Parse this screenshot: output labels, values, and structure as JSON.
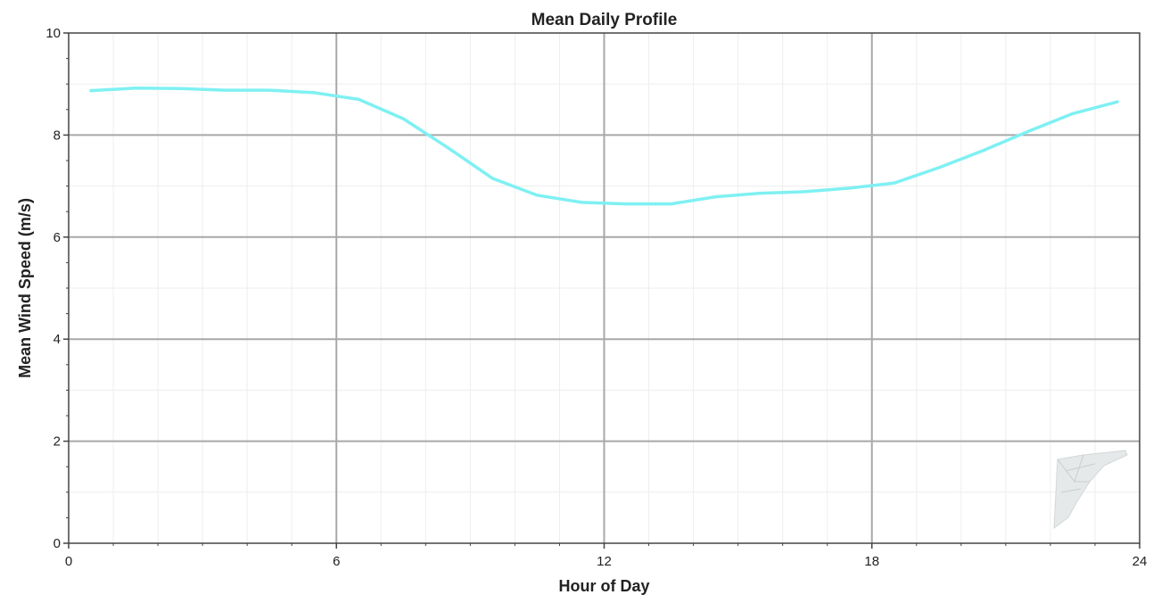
{
  "chart_data": {
    "type": "line",
    "title": "Mean Daily Profile",
    "xlabel": "Hour of Day",
    "ylabel": "Mean Wind Speed (m/s)",
    "xlim": [
      0,
      24
    ],
    "ylim": [
      0,
      10
    ],
    "xticks": [
      0,
      6,
      12,
      18,
      24
    ],
    "xtick_labels": [
      "0",
      "6",
      "12",
      "18",
      "24"
    ],
    "yticks": [
      0,
      2,
      4,
      6,
      8,
      10
    ],
    "ytick_labels": [
      "0",
      "2",
      "4",
      "6",
      "8",
      "10"
    ],
    "grid": true,
    "series": [
      {
        "color": "#7ff0f3",
        "x": [
          0.5,
          1.5,
          2.5,
          3.5,
          4.5,
          5.5,
          6.5,
          7.5,
          8.5,
          9.5,
          10.5,
          11.5,
          12.5,
          13.5,
          14.5,
          15.5,
          16.5,
          17.5,
          18.5,
          19.5,
          20.5,
          21.5,
          22.5,
          23.5
        ],
        "y": [
          8.87,
          8.92,
          8.91,
          8.88,
          8.88,
          8.83,
          8.7,
          8.32,
          7.75,
          7.15,
          6.82,
          6.68,
          6.65,
          6.65,
          6.79,
          6.86,
          6.89,
          6.96,
          7.06,
          7.36,
          7.7,
          8.07,
          8.42,
          8.65
        ]
      }
    ],
    "watermark": "logo-watermark-icon"
  }
}
